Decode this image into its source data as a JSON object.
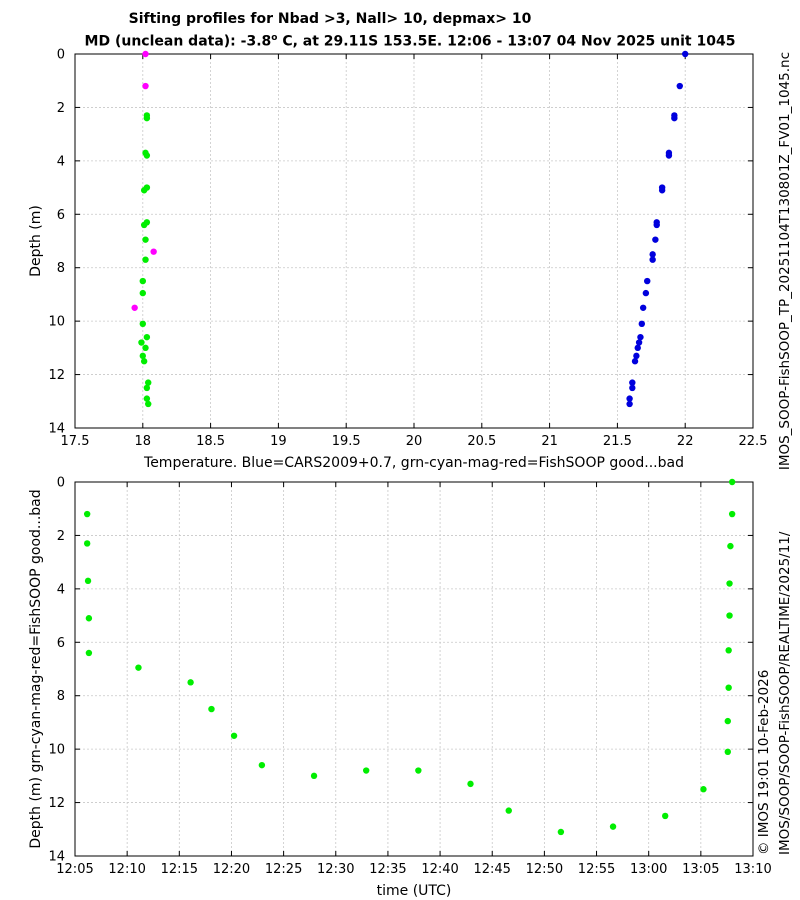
{
  "title": {
    "line1": "Sifting profiles for Nbad >3, Nall> 10, depmax> 10",
    "line2_pre": "MD (unclean data): -3.8",
    "line2_sup": "o",
    "line2_post": " C, at 29.11S 153.5E. 12:06 - 13:07 04 Nov 2025 unit 1045"
  },
  "side_text": {
    "right1": "IMOS_SOOP-FishSOOP_TP_20251104T130801Z_FV01_1045.nc",
    "right2a": "© IMOS 19:01 10-Feb-2026",
    "right2b": "IMOS/SOOP/SOOP-FishSOOP/REALTIME/2025/11/"
  },
  "colors": {
    "blue": "#0000dd",
    "green": "#00ee00",
    "magenta": "#ff00ff",
    "grid": "#c8c8c8"
  },
  "chart_data": [
    {
      "type": "scatter",
      "title": "Sifting profiles for Nbad >3, Nall> 10, depmax> 10",
      "xlabel": "Temperature. Blue=CARS2009+0.7, grn-cyan-mag-red=FishSOOP good...bad",
      "ylabel": "Depth (m)",
      "xlim": [
        17.5,
        22.5
      ],
      "ylim": [
        14,
        0
      ],
      "y_reversed": true,
      "xticks": [
        "17.5",
        "18",
        "18.5",
        "19",
        "19.5",
        "20",
        "20.5",
        "21",
        "21.5",
        "22",
        "22.5"
      ],
      "yticks": [
        "0",
        "2",
        "4",
        "6",
        "8",
        "10",
        "12",
        "14"
      ],
      "grid": true,
      "series": [
        {
          "color": "blue",
          "points": [
            [
              22.0,
              0.0
            ],
            [
              21.96,
              1.2
            ],
            [
              21.92,
              2.3
            ],
            [
              21.92,
              2.4
            ],
            [
              21.88,
              3.7
            ],
            [
              21.88,
              3.8
            ],
            [
              21.83,
              5.0
            ],
            [
              21.83,
              5.1
            ],
            [
              21.79,
              6.3
            ],
            [
              21.79,
              6.4
            ],
            [
              21.78,
              6.95
            ],
            [
              21.76,
              7.5
            ],
            [
              21.76,
              7.7
            ],
            [
              21.72,
              8.5
            ],
            [
              21.71,
              8.95
            ],
            [
              21.69,
              9.5
            ],
            [
              21.68,
              10.1
            ],
            [
              21.67,
              10.6
            ],
            [
              21.66,
              10.8
            ],
            [
              21.65,
              11.0
            ],
            [
              21.64,
              11.3
            ],
            [
              21.63,
              11.5
            ],
            [
              21.61,
              12.3
            ],
            [
              21.61,
              12.5
            ],
            [
              21.59,
              12.9
            ],
            [
              21.59,
              13.1
            ]
          ]
        },
        {
          "color": "green",
          "points": [
            [
              18.03,
              2.3
            ],
            [
              18.03,
              2.4
            ],
            [
              18.02,
              3.7
            ],
            [
              18.03,
              3.8
            ],
            [
              18.03,
              5.0
            ],
            [
              18.01,
              5.1
            ],
            [
              18.03,
              6.3
            ],
            [
              18.01,
              6.4
            ],
            [
              18.02,
              6.95
            ],
            [
              18.02,
              7.7
            ],
            [
              18.0,
              8.5
            ],
            [
              18.0,
              8.95
            ],
            [
              18.0,
              10.1
            ],
            [
              18.03,
              10.6
            ],
            [
              17.99,
              10.8
            ],
            [
              18.02,
              11.0
            ],
            [
              18.0,
              11.3
            ],
            [
              18.01,
              11.5
            ],
            [
              18.04,
              12.3
            ],
            [
              18.03,
              12.5
            ],
            [
              18.03,
              12.9
            ],
            [
              18.04,
              13.1
            ]
          ]
        },
        {
          "color": "magenta",
          "points": [
            [
              18.02,
              0.0
            ],
            [
              18.02,
              1.2
            ],
            [
              18.08,
              7.4
            ],
            [
              17.94,
              9.5
            ]
          ]
        }
      ]
    },
    {
      "type": "scatter",
      "xlabel": "time (UTC)",
      "ylabel": "Depth (m) grn-cyan-mag-red=FishSOOP good...bad",
      "xlim": [
        "12:05",
        "13:10"
      ],
      "ylim": [
        14,
        0
      ],
      "y_reversed": true,
      "xticks": [
        "12:05",
        "12:10",
        "12:15",
        "12:20",
        "12:25",
        "12:30",
        "12:35",
        "12:40",
        "12:45",
        "12:50",
        "12:55",
        "13:00",
        "13:05",
        "13:10"
      ],
      "yticks": [
        "0",
        "2",
        "4",
        "6",
        "8",
        "10",
        "12",
        "14"
      ],
      "grid": true,
      "series": [
        {
          "color": "green",
          "points": [
            [
              "12:06:10",
              1.2
            ],
            [
              "12:06:10",
              2.3
            ],
            [
              "12:06:15",
              3.7
            ],
            [
              "12:06:20",
              5.1
            ],
            [
              "12:06:20",
              6.4
            ],
            [
              "12:11:05",
              6.95
            ],
            [
              "12:16:05",
              7.5
            ],
            [
              "12:18:05",
              8.5
            ],
            [
              "12:20:15",
              9.5
            ],
            [
              "12:22:55",
              10.6
            ],
            [
              "12:27:55",
              11.0
            ],
            [
              "12:32:55",
              10.8
            ],
            [
              "12:37:55",
              10.8
            ],
            [
              "12:42:55",
              11.3
            ],
            [
              "12:46:35",
              12.3
            ],
            [
              "12:51:35",
              13.1
            ],
            [
              "12:56:35",
              12.9
            ],
            [
              "13:01:35",
              12.5
            ],
            [
              "13:05:15",
              11.5
            ],
            [
              "13:07:35",
              10.1
            ],
            [
              "13:07:35",
              8.95
            ],
            [
              "13:07:40",
              7.7
            ],
            [
              "13:07:40",
              6.3
            ],
            [
              "13:07:45",
              5.0
            ],
            [
              "13:07:45",
              3.8
            ],
            [
              "13:07:50",
              2.4
            ],
            [
              "13:08:00",
              1.2
            ],
            [
              "13:08:00",
              0.0
            ]
          ]
        }
      ]
    }
  ]
}
